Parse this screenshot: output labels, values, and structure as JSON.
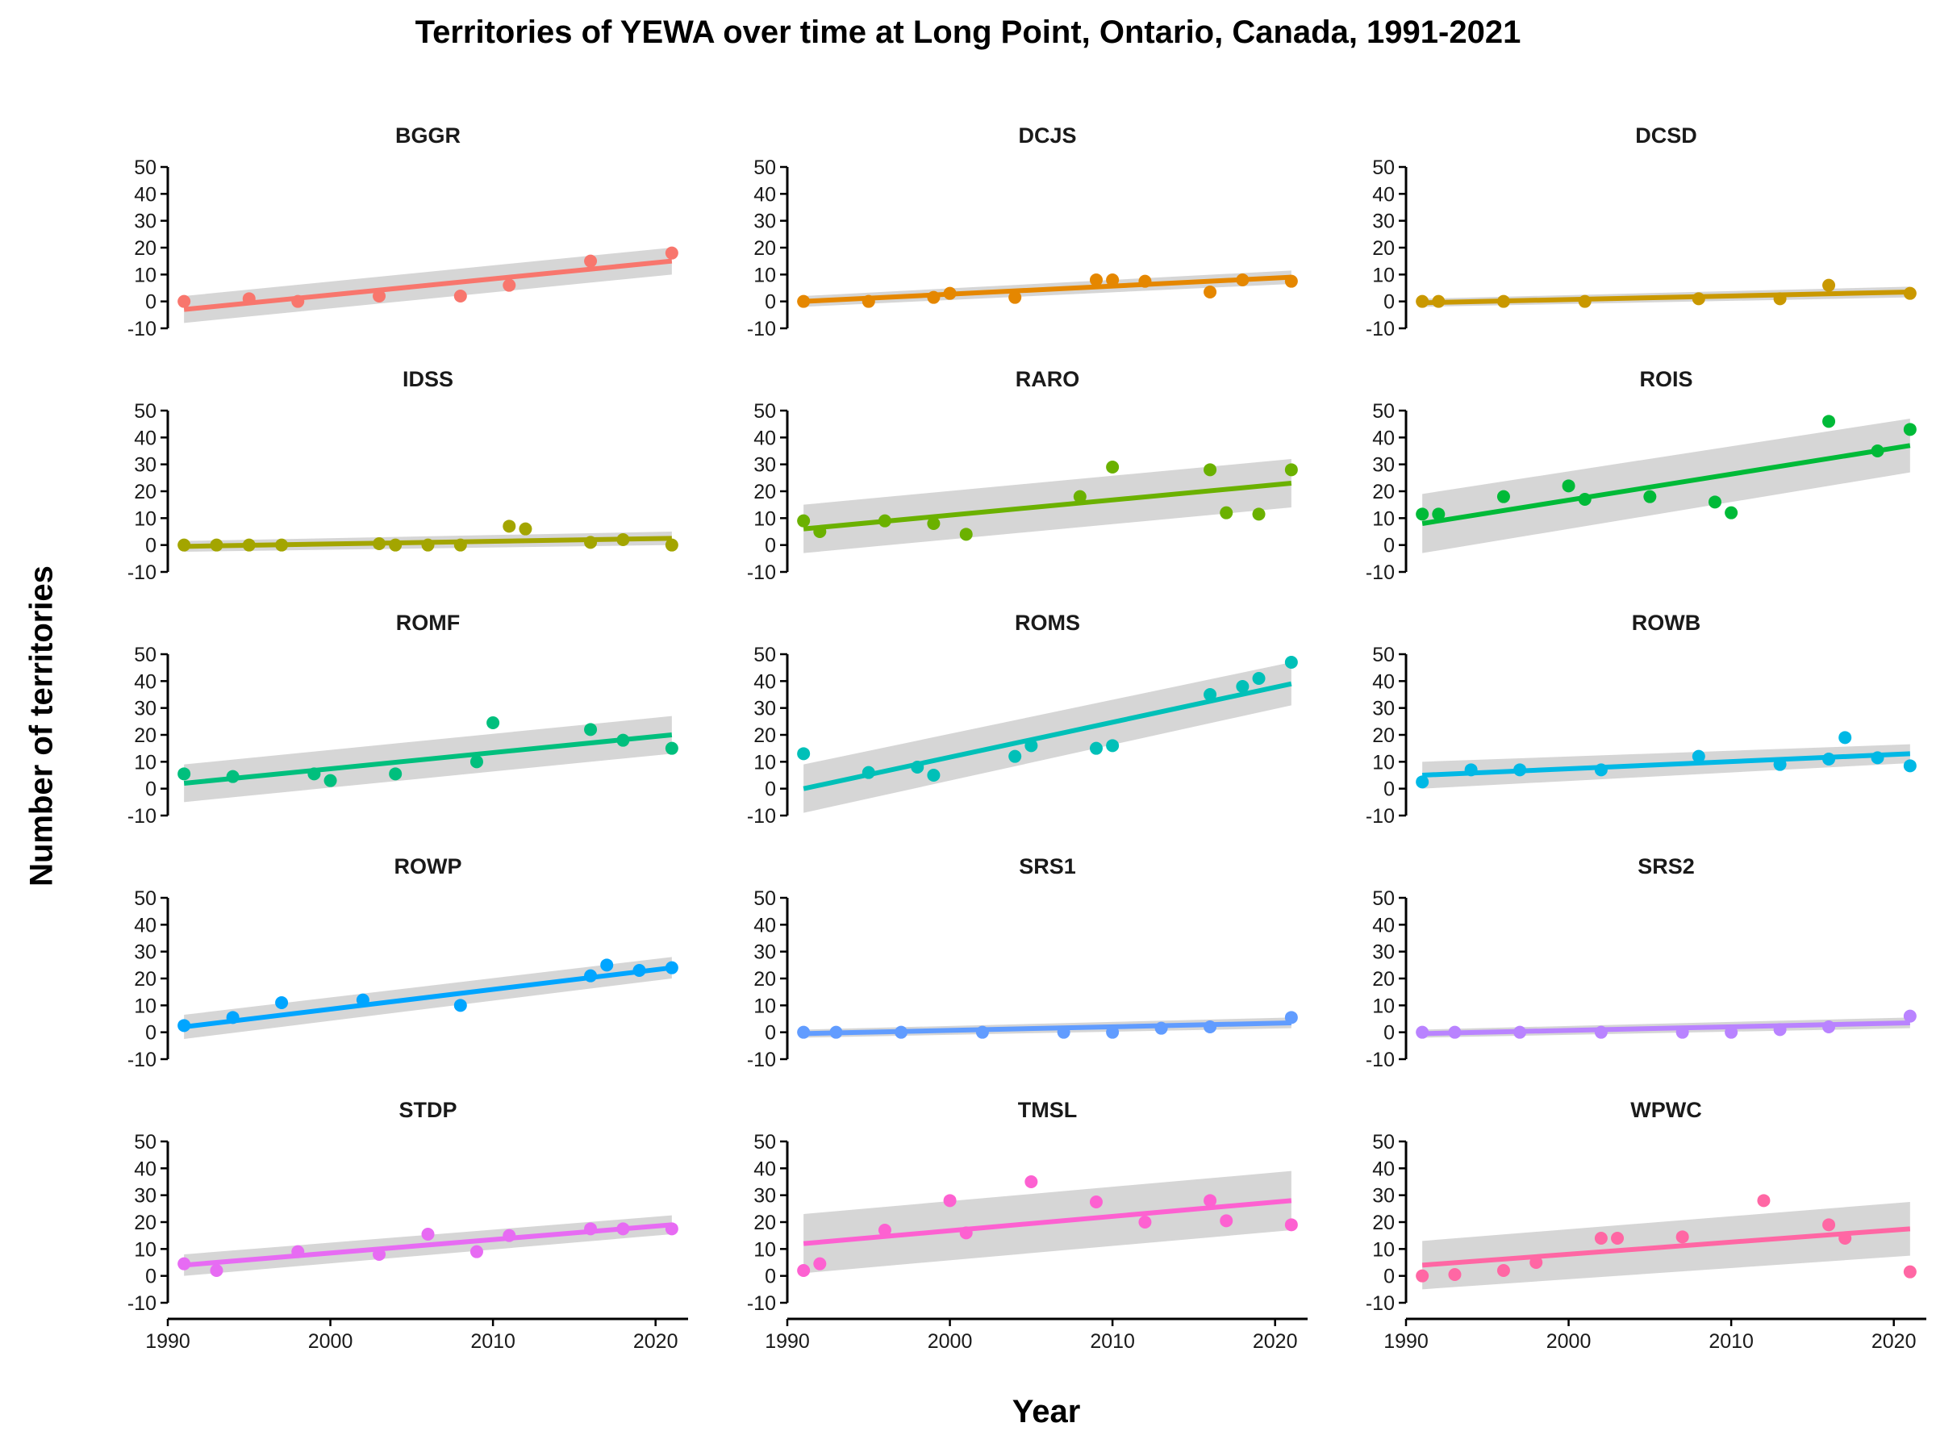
{
  "chart_data": {
    "type": "scatter",
    "title": "Territories of YEWA over time at Long Point, Ontario, Canada, 1991-2021",
    "xlabel": "Year",
    "ylabel": "Number of territories",
    "xlim": [
      1990,
      2022
    ],
    "ylim": [
      -10,
      50
    ],
    "x_ticks": [
      1990,
      2000,
      2010,
      2020
    ],
    "y_ticks": [
      -10,
      0,
      10,
      20,
      30,
      40,
      50
    ],
    "grid": false,
    "legend": "none",
    "facets": [
      {
        "name": "BGGR",
        "color": "#F8766D",
        "x": [
          1991,
          1995,
          1998,
          2003,
          2008,
          2011,
          2016,
          2021
        ],
        "y": [
          0,
          1,
          0,
          2,
          2,
          6,
          15,
          18
        ],
        "trend": {
          "x": [
            1991,
            2021
          ],
          "y": [
            -3,
            15
          ],
          "ci_lower": [
            -8,
            10
          ],
          "ci_upper": [
            2,
            20
          ]
        }
      },
      {
        "name": "DCJS",
        "color": "#E58700",
        "x": [
          1991,
          1995,
          1999,
          2000,
          2004,
          2009,
          2010,
          2012,
          2016,
          2018,
          2021
        ],
        "y": [
          0,
          0,
          1.5,
          3,
          1.5,
          8,
          8,
          7.5,
          3.5,
          8,
          7.5
        ],
        "trend": {
          "x": [
            1991,
            2021
          ],
          "y": [
            0,
            9
          ],
          "ci_lower": [
            -2,
            6.5
          ],
          "ci_upper": [
            2,
            11.5
          ]
        }
      },
      {
        "name": "DCSD",
        "color": "#C99800",
        "x": [
          1991,
          1992,
          1996,
          2001,
          2008,
          2013,
          2016,
          2021
        ],
        "y": [
          0,
          0,
          0,
          0,
          1,
          1,
          6,
          3
        ],
        "trend": {
          "x": [
            1991,
            2021
          ],
          "y": [
            -0.5,
            3.5
          ],
          "ci_lower": [
            -2,
            1.5
          ],
          "ci_upper": [
            1,
            5.5
          ]
        }
      },
      {
        "name": "IDSS",
        "color": "#A3A500",
        "x": [
          1991,
          1993,
          1995,
          1997,
          2003,
          2004,
          2006,
          2008,
          2011,
          2012,
          2016,
          2018,
          2021
        ],
        "y": [
          0,
          0,
          0,
          0,
          0.5,
          0,
          0,
          0,
          7,
          6,
          1,
          2,
          0
        ],
        "trend": {
          "x": [
            1991,
            2021
          ],
          "y": [
            -0.5,
            2.5
          ],
          "ci_lower": [
            -2.5,
            0
          ],
          "ci_upper": [
            1.5,
            5
          ]
        }
      },
      {
        "name": "RARO",
        "color": "#6BB100",
        "x": [
          1991,
          1992,
          1996,
          1999,
          2001,
          2008,
          2010,
          2016,
          2017,
          2019,
          2021
        ],
        "y": [
          9,
          5,
          9,
          8,
          4,
          18,
          29,
          28,
          12,
          11.5,
          28
        ],
        "trend": {
          "x": [
            1991,
            2021
          ],
          "y": [
            6,
            23
          ],
          "ci_lower": [
            -3,
            14
          ],
          "ci_upper": [
            15,
            32
          ]
        }
      },
      {
        "name": "ROIS",
        "color": "#00BA38",
        "x": [
          1991,
          1992,
          1996,
          2000,
          2001,
          2005,
          2009,
          2010,
          2016,
          2019,
          2021
        ],
        "y": [
          11.5,
          11.5,
          18,
          22,
          17,
          18,
          16,
          12,
          46,
          35,
          43
        ],
        "trend": {
          "x": [
            1991,
            2021
          ],
          "y": [
            8,
            37
          ],
          "ci_lower": [
            -3,
            27
          ],
          "ci_upper": [
            19,
            47
          ]
        }
      },
      {
        "name": "ROMF",
        "color": "#00BF7D",
        "x": [
          1991,
          1994,
          1999,
          2000,
          2004,
          2009,
          2010,
          2016,
          2018,
          2021
        ],
        "y": [
          5.5,
          4.5,
          5.5,
          3,
          5.5,
          10,
          24.5,
          22,
          18,
          15
        ],
        "trend": {
          "x": [
            1991,
            2021
          ],
          "y": [
            2,
            20
          ],
          "ci_lower": [
            -5,
            13
          ],
          "ci_upper": [
            9,
            27
          ]
        }
      },
      {
        "name": "ROMS",
        "color": "#00C0B8",
        "x": [
          1991,
          1995,
          1998,
          1999,
          2004,
          2005,
          2009,
          2010,
          2016,
          2018,
          2019,
          2021
        ],
        "y": [
          13,
          6,
          8,
          5,
          12,
          16,
          15,
          16,
          35,
          38,
          41,
          47
        ],
        "trend": {
          "x": [
            1991,
            2021
          ],
          "y": [
            0,
            39
          ],
          "ci_lower": [
            -9,
            31
          ],
          "ci_upper": [
            9,
            47
          ]
        }
      },
      {
        "name": "ROWB",
        "color": "#00B8E5",
        "x": [
          1991,
          1994,
          1997,
          2002,
          2008,
          2013,
          2016,
          2017,
          2019,
          2021
        ],
        "y": [
          2.5,
          7,
          7,
          7,
          12,
          9,
          11,
          19,
          11.5,
          8.5
        ],
        "trend": {
          "x": [
            1991,
            2021
          ],
          "y": [
            5,
            13
          ],
          "ci_lower": [
            0,
            9.5
          ],
          "ci_upper": [
            10,
            16.5
          ]
        }
      },
      {
        "name": "ROWP",
        "color": "#00A5FF",
        "x": [
          1991,
          1994,
          1997,
          2002,
          2008,
          2016,
          2017,
          2019,
          2021
        ],
        "y": [
          2.5,
          5.5,
          11,
          12,
          10,
          21,
          25,
          23,
          24
        ],
        "trend": {
          "x": [
            1991,
            2021
          ],
          "y": [
            2,
            24
          ],
          "ci_lower": [
            -2.5,
            20
          ],
          "ci_upper": [
            6.5,
            28
          ]
        }
      },
      {
        "name": "SRS1",
        "color": "#619CFF",
        "x": [
          1991,
          1993,
          1997,
          2002,
          2007,
          2010,
          2013,
          2016,
          2021
        ],
        "y": [
          0,
          0,
          0,
          0,
          0,
          0,
          1.5,
          2,
          5.5
        ],
        "trend": {
          "x": [
            1991,
            2021
          ],
          "y": [
            -0.5,
            3.5
          ],
          "ci_lower": [
            -2,
            1.5
          ],
          "ci_upper": [
            1,
            5.5
          ]
        }
      },
      {
        "name": "SRS2",
        "color": "#B983FF",
        "x": [
          1991,
          1993,
          1997,
          2002,
          2007,
          2010,
          2013,
          2016,
          2021
        ],
        "y": [
          0,
          0,
          0,
          0,
          0,
          0,
          1,
          2,
          6
        ],
        "trend": {
          "x": [
            1991,
            2021
          ],
          "y": [
            -0.5,
            3.5
          ],
          "ci_lower": [
            -2,
            1.5
          ],
          "ci_upper": [
            1,
            5.5
          ]
        }
      },
      {
        "name": "STDP",
        "color": "#E76BF3",
        "x": [
          1991,
          1993,
          1998,
          2003,
          2006,
          2009,
          2011,
          2016,
          2018,
          2021
        ],
        "y": [
          4.5,
          2,
          9,
          8,
          15.5,
          9,
          15,
          17.5,
          17.5,
          17.5
        ],
        "trend": {
          "x": [
            1991,
            2021
          ],
          "y": [
            4,
            19
          ],
          "ci_lower": [
            0,
            15.5
          ],
          "ci_upper": [
            8,
            22.5
          ]
        }
      },
      {
        "name": "TMSL",
        "color": "#FD61D1",
        "x": [
          1991,
          1992,
          1996,
          2000,
          2001,
          2005,
          2009,
          2012,
          2016,
          2017,
          2021
        ],
        "y": [
          2,
          4.5,
          17,
          28,
          16,
          35,
          27.5,
          20,
          28,
          20.5,
          19
        ],
        "trend": {
          "x": [
            1991,
            2021
          ],
          "y": [
            12,
            28
          ],
          "ci_lower": [
            1,
            17
          ],
          "ci_upper": [
            23,
            39
          ]
        }
      },
      {
        "name": "WPWC",
        "color": "#FF67A4",
        "x": [
          1991,
          1993,
          1996,
          1998,
          2002,
          2003,
          2007,
          2012,
          2016,
          2017,
          2021
        ],
        "y": [
          0,
          0.5,
          2,
          5,
          14,
          14,
          14.5,
          28,
          19,
          14,
          1.5
        ],
        "trend": {
          "x": [
            1991,
            2021
          ],
          "y": [
            4,
            17.5
          ],
          "ci_lower": [
            -5,
            7.5
          ],
          "ci_upper": [
            13,
            27.5
          ]
        }
      }
    ]
  }
}
